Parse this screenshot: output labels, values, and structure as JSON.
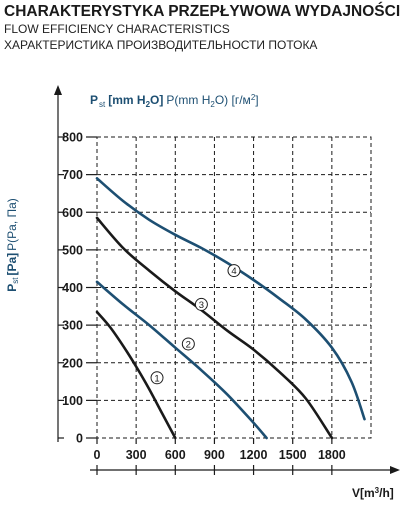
{
  "header": {
    "title": "CHARAKTERYSTYKA PRZEPŁYWOWA WYDAJNOŚCI",
    "subtitle_en": "FLOW EFFICIENCY CHARACTERISTICS",
    "subtitle_ru": "ХАРАКТЕРИСТИКА ПРОИЗВОДИТЕЛЬНОСТИ ПОТОКА"
  },
  "chart_data": {
    "type": "line",
    "title": "CHARAKTERYSTYKA PRZEPŁYWOWA WYDAJNOŚCI",
    "ylabel_left": {
      "main": "P",
      "sub": "st",
      "unit": "[Pa]",
      "rest": "P(Pa, Па)"
    },
    "ylabel_top": {
      "main": "P",
      "sub": "st",
      "unit_a": "[mm H",
      "unit_a_sub": "2",
      "unit_a_end": "O]",
      "rest_a": "P(mm H",
      "rest_a_sub": "2",
      "rest_a_end": "O) [г/м",
      "rest_sup": "2",
      "rest_end": "]"
    },
    "xlabel": {
      "main": "V[m",
      "sup": "3",
      "end": "/h]"
    },
    "xlim": [
      0,
      2100
    ],
    "ylim": [
      0,
      800
    ],
    "x_ticks": [
      "0",
      "300",
      "600",
      "900",
      "1200",
      "1500",
      "1800"
    ],
    "x_tick_values": [
      0,
      300,
      600,
      900,
      1200,
      1500,
      1800
    ],
    "y_ticks": [
      "0",
      "100",
      "200",
      "300",
      "400",
      "500",
      "600",
      "700",
      "800"
    ],
    "y_tick_values": [
      0,
      100,
      200,
      300,
      400,
      500,
      600,
      700,
      800
    ],
    "grid": true,
    "series": [
      {
        "name": "1",
        "color": "#1a1a1a",
        "x": [
          0,
          100,
          200,
          300,
          400,
          500,
          600
        ],
        "y": [
          335,
          295,
          245,
          190,
          130,
          65,
          0
        ],
        "label_at": [
          460,
          160
        ]
      },
      {
        "name": "2",
        "color": "#1d4f72",
        "x": [
          0,
          200,
          400,
          600,
          800,
          1000,
          1200,
          1300
        ],
        "y": [
          415,
          355,
          300,
          240,
          180,
          115,
          40,
          0
        ],
        "label_at": [
          700,
          250
        ]
      },
      {
        "name": "3",
        "color": "#1a1a1a",
        "x": [
          0,
          200,
          400,
          600,
          800,
          1000,
          1200,
          1400,
          1600,
          1800
        ],
        "y": [
          585,
          505,
          445,
          390,
          340,
          285,
          235,
          175,
          105,
          0
        ],
        "label_at": [
          800,
          355
        ]
      },
      {
        "name": "4",
        "color": "#1d4f72",
        "x": [
          0,
          200,
          400,
          600,
          800,
          1000,
          1200,
          1400,
          1600,
          1800,
          1950,
          2050
        ],
        "y": [
          690,
          630,
          580,
          540,
          505,
          465,
          420,
          370,
          315,
          240,
          150,
          50
        ],
        "label_at": [
          1050,
          445
        ]
      }
    ]
  }
}
